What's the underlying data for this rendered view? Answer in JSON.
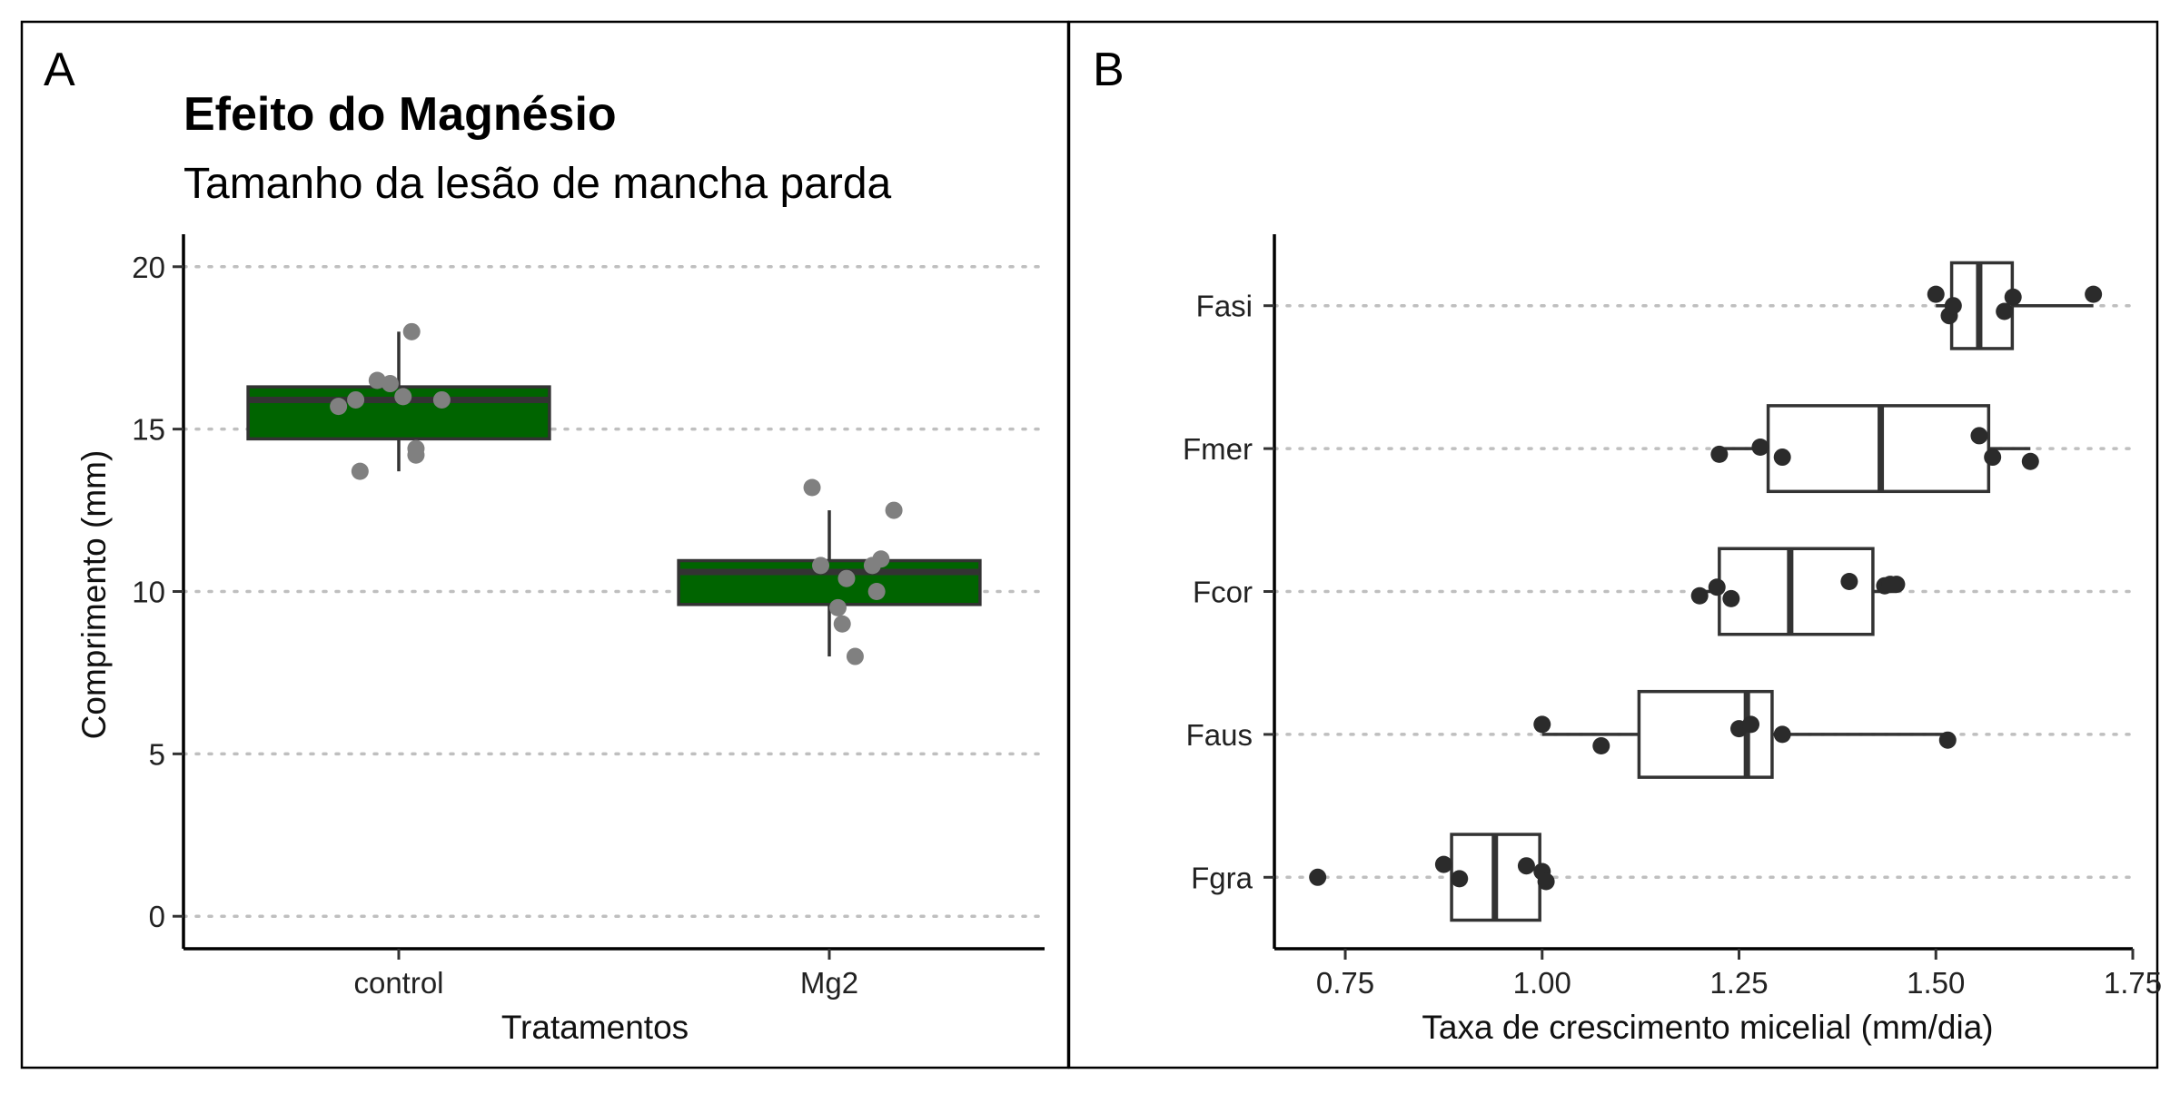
{
  "colors": {
    "box_fill_a": "#006400",
    "box_stroke": "#333333",
    "jitter_a": "#808080",
    "points_b": "#2b2b2b",
    "grid": "#bfbfbf"
  },
  "chart_data": [
    {
      "panel": "A",
      "type": "box",
      "title": "Efeito do Magnésio",
      "subtitle": "Tamanho da lesão de mancha parda",
      "xlabel": "Tratamentos",
      "ylabel": "Comprimento (mm)",
      "categories": [
        "control",
        "Mg2"
      ],
      "ylim": [
        -1,
        21
      ],
      "yticks": [
        0,
        5,
        10,
        15,
        20
      ],
      "grid": "horizontal dotted",
      "box_fill": "#006400",
      "boxes": [
        {
          "category": "control",
          "q1": 14.7,
          "median": 15.9,
          "q3": 16.3,
          "whisker_low": 13.7,
          "whisker_high": 18.0
        },
        {
          "category": "Mg2",
          "q1": 9.6,
          "median": 10.6,
          "q3": 10.95,
          "whisker_low": 8.0,
          "whisker_high": 12.5
        }
      ],
      "points": [
        {
          "category": "control",
          "y": 18.0,
          "jitter": 0.03
        },
        {
          "category": "control",
          "y": 16.5,
          "jitter": -0.05
        },
        {
          "category": "control",
          "y": 16.4,
          "jitter": -0.02
        },
        {
          "category": "control",
          "y": 16.0,
          "jitter": 0.01
        },
        {
          "category": "control",
          "y": 15.9,
          "jitter": -0.1
        },
        {
          "category": "control",
          "y": 15.9,
          "jitter": 0.1
        },
        {
          "category": "control",
          "y": 15.7,
          "jitter": -0.14
        },
        {
          "category": "control",
          "y": 14.4,
          "jitter": 0.04
        },
        {
          "category": "control",
          "y": 14.2,
          "jitter": 0.04
        },
        {
          "category": "control",
          "y": 13.7,
          "jitter": -0.09
        },
        {
          "category": "Mg2",
          "y": 13.2,
          "jitter": -0.04
        },
        {
          "category": "Mg2",
          "y": 12.5,
          "jitter": 0.15
        },
        {
          "category": "Mg2",
          "y": 11.0,
          "jitter": 0.12
        },
        {
          "category": "Mg2",
          "y": 10.8,
          "jitter": -0.02
        },
        {
          "category": "Mg2",
          "y": 10.8,
          "jitter": 0.1
        },
        {
          "category": "Mg2",
          "y": 10.4,
          "jitter": 0.04
        },
        {
          "category": "Mg2",
          "y": 10.0,
          "jitter": 0.11
        },
        {
          "category": "Mg2",
          "y": 9.5,
          "jitter": 0.02
        },
        {
          "category": "Mg2",
          "y": 9.0,
          "jitter": 0.03
        },
        {
          "category": "Mg2",
          "y": 8.0,
          "jitter": 0.06
        }
      ]
    },
    {
      "panel": "B",
      "type": "box",
      "orientation": "horizontal",
      "xlabel": "Taxa de crescimento micelial (mm/dia)",
      "ylabel": "",
      "categories": [
        "Fasi",
        "Fmer",
        "Fcor",
        "Faus",
        "Fgra"
      ],
      "xlim": [
        0.66,
        1.75
      ],
      "xticks": [
        "0.75",
        "1.00",
        "1.25",
        "1.50",
        "1.75"
      ],
      "grid": "horizontal dotted",
      "boxes": [
        {
          "category": "Fasi",
          "q1": 1.52,
          "median": 1.555,
          "q3": 1.597,
          "whisker_low": 1.5,
          "whisker_high": 1.7
        },
        {
          "category": "Fmer",
          "q1": 1.287,
          "median": 1.43,
          "q3": 1.567,
          "whisker_low": 1.225,
          "whisker_high": 1.62
        },
        {
          "category": "Fcor",
          "q1": 1.225,
          "median": 1.315,
          "q3": 1.42,
          "whisker_low": 1.2,
          "whisker_high": 1.45
        },
        {
          "category": "Faus",
          "q1": 1.123,
          "median": 1.26,
          "q3": 1.292,
          "whisker_low": 1.0,
          "whisker_high": 1.515
        },
        {
          "category": "Fgra",
          "q1": 0.885,
          "median": 0.94,
          "q3": 0.997,
          "whisker_low": 0.885,
          "whisker_high": 0.997
        }
      ],
      "points": [
        {
          "category": "Fasi",
          "x": 1.5,
          "jitter": -0.08
        },
        {
          "category": "Fasi",
          "x": 1.517,
          "jitter": 0.07
        },
        {
          "category": "Fasi",
          "x": 1.522,
          "jitter": 0.0
        },
        {
          "category": "Fasi",
          "x": 1.587,
          "jitter": 0.04
        },
        {
          "category": "Fasi",
          "x": 1.598,
          "jitter": -0.06
        },
        {
          "category": "Fasi",
          "x": 1.7,
          "jitter": -0.08
        },
        {
          "category": "Fmer",
          "x": 1.225,
          "jitter": 0.04
        },
        {
          "category": "Fmer",
          "x": 1.277,
          "jitter": -0.01
        },
        {
          "category": "Fmer",
          "x": 1.305,
          "jitter": 0.06
        },
        {
          "category": "Fmer",
          "x": 1.555,
          "jitter": -0.09
        },
        {
          "category": "Fmer",
          "x": 1.572,
          "jitter": 0.06
        },
        {
          "category": "Fmer",
          "x": 1.62,
          "jitter": 0.09
        },
        {
          "category": "Fcor",
          "x": 1.2,
          "jitter": 0.03
        },
        {
          "category": "Fcor",
          "x": 1.222,
          "jitter": -0.03
        },
        {
          "category": "Fcor",
          "x": 1.24,
          "jitter": 0.05
        },
        {
          "category": "Fcor",
          "x": 1.39,
          "jitter": -0.07
        },
        {
          "category": "Fcor",
          "x": 1.435,
          "jitter": -0.04
        },
        {
          "category": "Fcor",
          "x": 1.442,
          "jitter": -0.05
        },
        {
          "category": "Fcor",
          "x": 1.45,
          "jitter": -0.05
        },
        {
          "category": "Faus",
          "x": 1.0,
          "jitter": -0.07
        },
        {
          "category": "Faus",
          "x": 1.075,
          "jitter": 0.08
        },
        {
          "category": "Faus",
          "x": 1.25,
          "jitter": -0.04
        },
        {
          "category": "Faus",
          "x": 1.265,
          "jitter": -0.07
        },
        {
          "category": "Faus",
          "x": 1.305,
          "jitter": 0.0
        },
        {
          "category": "Faus",
          "x": 1.515,
          "jitter": 0.04
        },
        {
          "category": "Fgra",
          "x": 0.715,
          "jitter": 0.0
        },
        {
          "category": "Fgra",
          "x": 0.875,
          "jitter": -0.09
        },
        {
          "category": "Fgra",
          "x": 0.895,
          "jitter": 0.01
        },
        {
          "category": "Fgra",
          "x": 0.98,
          "jitter": -0.08
        },
        {
          "category": "Fgra",
          "x": 1.0,
          "jitter": -0.04
        },
        {
          "category": "Fgra",
          "x": 1.005,
          "jitter": 0.03
        }
      ]
    }
  ]
}
